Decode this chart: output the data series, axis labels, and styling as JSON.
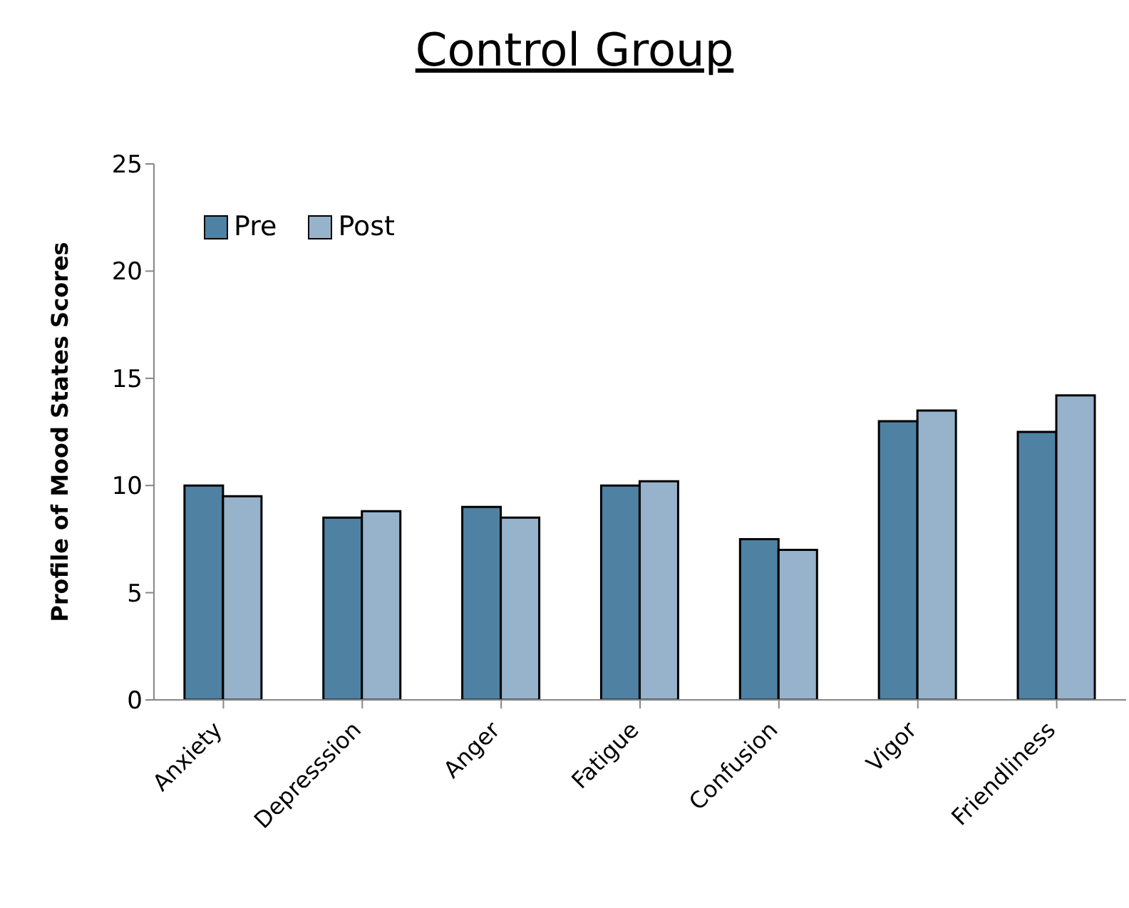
{
  "chart_data": {
    "type": "bar",
    "title": "Control Group",
    "ylabel": "Profile of Mood States Scores",
    "categories": [
      "Anxiety",
      "Depresssion",
      "Anger",
      "Fatigue",
      "Confusion",
      "Vigor",
      "Friendliness"
    ],
    "series": [
      {
        "name": "Pre",
        "color": "#4f81a3",
        "values": [
          10,
          8.5,
          9,
          10,
          7.5,
          13,
          12.5
        ]
      },
      {
        "name": "Post",
        "color": "#97b2cb",
        "values": [
          9.5,
          8.8,
          8.5,
          10.2,
          7,
          13.5,
          14.2
        ]
      }
    ],
    "ylim": [
      0,
      25
    ],
    "yticks": [
      0,
      5,
      10,
      15,
      20,
      25
    ],
    "grid": false,
    "legend": "top left"
  }
}
